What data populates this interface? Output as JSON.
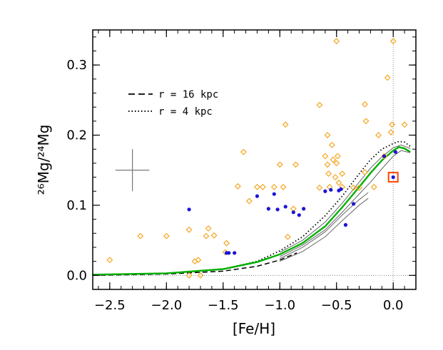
{
  "chart_data": {
    "type": "scatter",
    "xlabel": "[Fe/H]",
    "ylabel": "²⁶Mg/²⁴Mg",
    "xlim": [
      -2.65,
      0.2
    ],
    "ylim": [
      -0.02,
      0.35
    ],
    "xticks": [
      -2.5,
      -2.0,
      -1.5,
      -1.0,
      -0.5,
      0.0
    ],
    "xtick_labels": [
      "−2.5",
      "−2.0",
      "−1.5",
      "−1.0",
      "−0.5",
      "0.0"
    ],
    "yticks": [
      0.0,
      0.1,
      0.2,
      0.3
    ],
    "ytick_labels": [
      "0.0",
      "0.1",
      "0.2",
      "0.3"
    ],
    "x_minor_step": 0.1,
    "y_minor_step": 0.02,
    "reference_lines": {
      "x": 0.0,
      "y": 0.0,
      "style": "dotted"
    },
    "legend": {
      "position": "upper-left",
      "entries": [
        {
          "label": "r = 16 kpc",
          "style": "dashed"
        },
        {
          "label": "r = 4 kpc",
          "style": "dotted"
        }
      ]
    },
    "error_bar": {
      "x": -2.3,
      "y": 0.15,
      "xerr": 0.15,
      "yerr": 0.03
    },
    "colors": {
      "diamonds": "#f5a623",
      "dots": "#1a14d6",
      "model": "#00b000",
      "square": "#ff4500",
      "thin_lines": "#555555"
    },
    "series": [
      {
        "marker": "diamond",
        "points": [
          [
            -2.5,
            0.022
          ],
          [
            -2.23,
            0.056
          ],
          [
            -2.0,
            0.056
          ],
          [
            -1.8,
            0.065
          ],
          [
            -1.8,
            0.0
          ],
          [
            -1.75,
            0.02
          ],
          [
            -1.72,
            0.022
          ],
          [
            -1.7,
            0.0
          ],
          [
            -1.65,
            0.056
          ],
          [
            -1.63,
            0.067
          ],
          [
            -1.58,
            0.057
          ],
          [
            -1.48,
            0.033
          ],
          [
            -1.47,
            0.046
          ],
          [
            -1.37,
            0.127
          ],
          [
            -1.32,
            0.176
          ],
          [
            -1.27,
            0.106
          ],
          [
            -1.2,
            0.126
          ],
          [
            -1.15,
            0.126
          ],
          [
            -1.05,
            0.126
          ],
          [
            -1.0,
            0.158
          ],
          [
            -0.97,
            0.126
          ],
          [
            -0.95,
            0.215
          ],
          [
            -0.93,
            0.055
          ],
          [
            -0.88,
            0.095
          ],
          [
            -0.86,
            0.158
          ],
          [
            -0.65,
            0.125
          ],
          [
            -0.65,
            0.243
          ],
          [
            -0.6,
            0.17
          ],
          [
            -0.58,
            0.2
          ],
          [
            -0.58,
            0.158
          ],
          [
            -0.57,
            0.145
          ],
          [
            -0.56,
            0.126
          ],
          [
            -0.54,
            0.186
          ],
          [
            -0.53,
            0.165
          ],
          [
            -0.51,
            0.14
          ],
          [
            -0.5,
            0.16
          ],
          [
            -0.49,
            0.17
          ],
          [
            -0.5,
            0.334
          ],
          [
            -0.48,
            0.132
          ],
          [
            -0.45,
            0.126
          ],
          [
            -0.45,
            0.145
          ],
          [
            -0.35,
            0.125
          ],
          [
            -0.3,
            0.125
          ],
          [
            -0.25,
            0.147
          ],
          [
            -0.25,
            0.244
          ],
          [
            -0.24,
            0.22
          ],
          [
            -0.17,
            0.126
          ],
          [
            -0.13,
            0.2
          ],
          [
            -0.08,
            0.17
          ],
          [
            -0.05,
            0.282
          ],
          [
            -0.02,
            0.204
          ],
          [
            -0.01,
            0.215
          ],
          [
            0.0,
            0.334
          ],
          [
            0.1,
            0.215
          ]
        ]
      },
      {
        "marker": "dot",
        "points": [
          [
            -1.8,
            0.094
          ],
          [
            -1.47,
            0.032
          ],
          [
            -1.45,
            0.032
          ],
          [
            -1.4,
            0.032
          ],
          [
            -1.2,
            0.113
          ],
          [
            -1.1,
            0.095
          ],
          [
            -1.05,
            0.116
          ],
          [
            -1.02,
            0.094
          ],
          [
            -0.95,
            0.098
          ],
          [
            -0.88,
            0.09
          ],
          [
            -0.83,
            0.086
          ],
          [
            -0.79,
            0.095
          ],
          [
            -0.6,
            0.12
          ],
          [
            -0.55,
            0.122
          ],
          [
            -0.48,
            0.121
          ],
          [
            -0.46,
            0.123
          ],
          [
            -0.42,
            0.072
          ],
          [
            -0.35,
            0.102
          ],
          [
            -0.08,
            0.17
          ],
          [
            0.0,
            0.14
          ],
          [
            0.02,
            0.176
          ]
        ]
      },
      {
        "marker": "square",
        "points": [
          [
            0.0,
            0.14
          ]
        ]
      }
    ],
    "model_lines": {
      "green": [
        [
          -2.65,
          0.001
        ],
        [
          -2.0,
          0.003
        ],
        [
          -1.5,
          0.009
        ],
        [
          -1.2,
          0.019
        ],
        [
          -1.0,
          0.03
        ],
        [
          -0.8,
          0.046
        ],
        [
          -0.6,
          0.07
        ],
        [
          -0.45,
          0.097
        ],
        [
          -0.3,
          0.126
        ],
        [
          -0.2,
          0.146
        ],
        [
          -0.1,
          0.164
        ],
        [
          0.0,
          0.178
        ],
        [
          0.05,
          0.183
        ],
        [
          0.1,
          0.181
        ],
        [
          0.15,
          0.176
        ]
      ],
      "dashed": [
        [
          -2.65,
          0.0
        ],
        [
          -2.0,
          0.002
        ],
        [
          -1.5,
          0.006
        ],
        [
          -1.2,
          0.013
        ],
        [
          -1.0,
          0.022
        ],
        [
          -0.85,
          0.032
        ]
      ],
      "dotted": [
        [
          -2.65,
          0.001
        ],
        [
          -2.0,
          0.003
        ],
        [
          -1.5,
          0.009
        ],
        [
          -1.2,
          0.02
        ],
        [
          -1.0,
          0.035
        ],
        [
          -0.8,
          0.055
        ],
        [
          -0.6,
          0.085
        ],
        [
          -0.45,
          0.113
        ],
        [
          -0.3,
          0.145
        ],
        [
          -0.2,
          0.165
        ],
        [
          -0.1,
          0.18
        ],
        [
          0.0,
          0.188
        ],
        [
          0.05,
          0.191
        ],
        [
          0.1,
          0.19
        ],
        [
          0.15,
          0.184
        ]
      ],
      "thin": [
        [
          [
            -1.0,
            0.02
          ],
          [
            -0.8,
            0.034
          ],
          [
            -0.6,
            0.055
          ],
          [
            -0.45,
            0.078
          ],
          [
            -0.3,
            0.1
          ],
          [
            -0.22,
            0.11
          ]
        ],
        [
          [
            -1.0,
            0.024
          ],
          [
            -0.8,
            0.04
          ],
          [
            -0.6,
            0.062
          ],
          [
            -0.45,
            0.086
          ],
          [
            -0.3,
            0.108
          ],
          [
            -0.22,
            0.118
          ]
        ],
        [
          [
            -1.0,
            0.027
          ],
          [
            -0.8,
            0.043
          ],
          [
            -0.6,
            0.065
          ],
          [
            -0.45,
            0.09
          ],
          [
            -0.3,
            0.116
          ],
          [
            -0.2,
            0.133
          ],
          [
            -0.1,
            0.152
          ],
          [
            0.0,
            0.17
          ],
          [
            0.07,
            0.178
          ],
          [
            0.15,
            0.175
          ]
        ],
        [
          [
            -1.0,
            0.033
          ],
          [
            -0.8,
            0.05
          ],
          [
            -0.6,
            0.076
          ],
          [
            -0.45,
            0.103
          ],
          [
            -0.3,
            0.133
          ],
          [
            -0.2,
            0.153
          ],
          [
            -0.1,
            0.169
          ],
          [
            0.0,
            0.182
          ],
          [
            0.07,
            0.186
          ],
          [
            0.15,
            0.181
          ]
        ]
      ]
    }
  }
}
